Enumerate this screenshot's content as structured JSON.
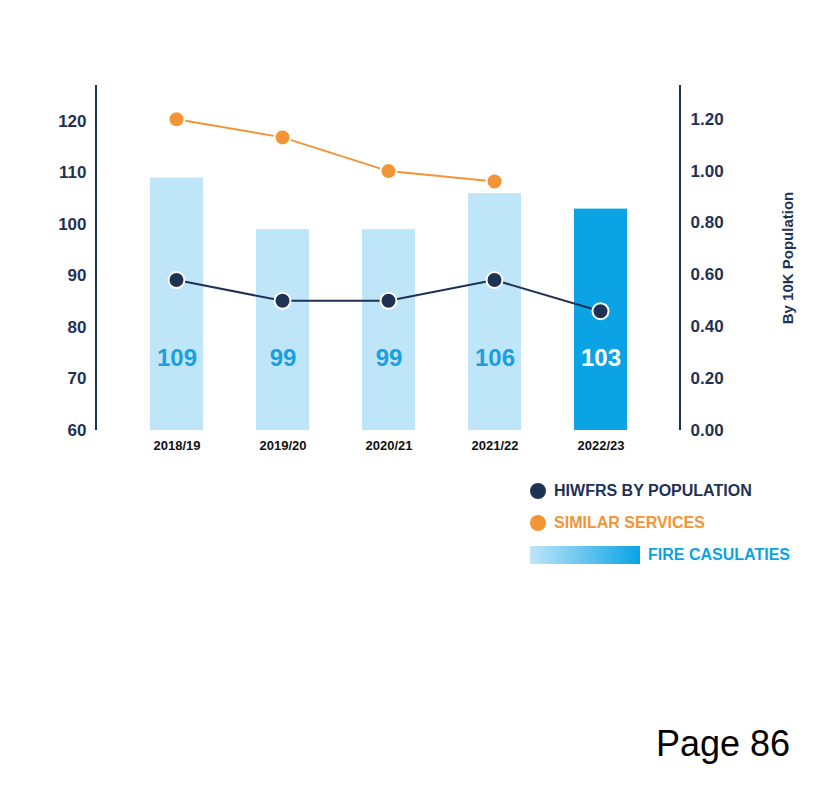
{
  "chart_data": {
    "type": "bar",
    "categories": [
      "2018/19",
      "2019/20",
      "2020/21",
      "2021/22",
      "2022/23"
    ],
    "series": [
      {
        "name": "HIWFRS BY POPULATION",
        "type": "line",
        "axis": "y2",
        "color": "#1f3254",
        "marker": "circle",
        "values": [
          0.58,
          0.5,
          0.5,
          0.58,
          0.46
        ]
      },
      {
        "name": "SIMILAR SERVICES",
        "type": "line",
        "axis": "y2",
        "color": "#f39436",
        "marker": "circle",
        "values": [
          1.2,
          1.13,
          1.0,
          0.96,
          null
        ]
      },
      {
        "name": "FIRE CASULATIES",
        "type": "bar",
        "data_labels": true,
        "colors": [
          "#bfe5f9",
          "#bfe5f9",
          "#bfe5f9",
          "#bfe5f9",
          "#0ba3e3"
        ],
        "values": [
          109,
          99,
          99,
          106,
          103
        ]
      }
    ],
    "ylim": [
      60,
      127
    ],
    "yticks": [
      60,
      70,
      80,
      90,
      100,
      110,
      120
    ],
    "y2lim": [
      0,
      1.33
    ],
    "y2ticks": [
      {
        "value": 0,
        "label": "0.00"
      },
      {
        "value": 0.2,
        "label": "0.20"
      },
      {
        "value": 0.4,
        "label": "0.40"
      },
      {
        "value": 0.6,
        "label": "0.60"
      },
      {
        "value": 0.8,
        "label": "0.80"
      },
      {
        "value": 1.0,
        "label": "1.00"
      },
      {
        "value": 1.2,
        "label": "1.20"
      }
    ],
    "y2label": "By 10K Population",
    "legend": "bottom right",
    "annotations": [
      "Page 86"
    ]
  }
}
